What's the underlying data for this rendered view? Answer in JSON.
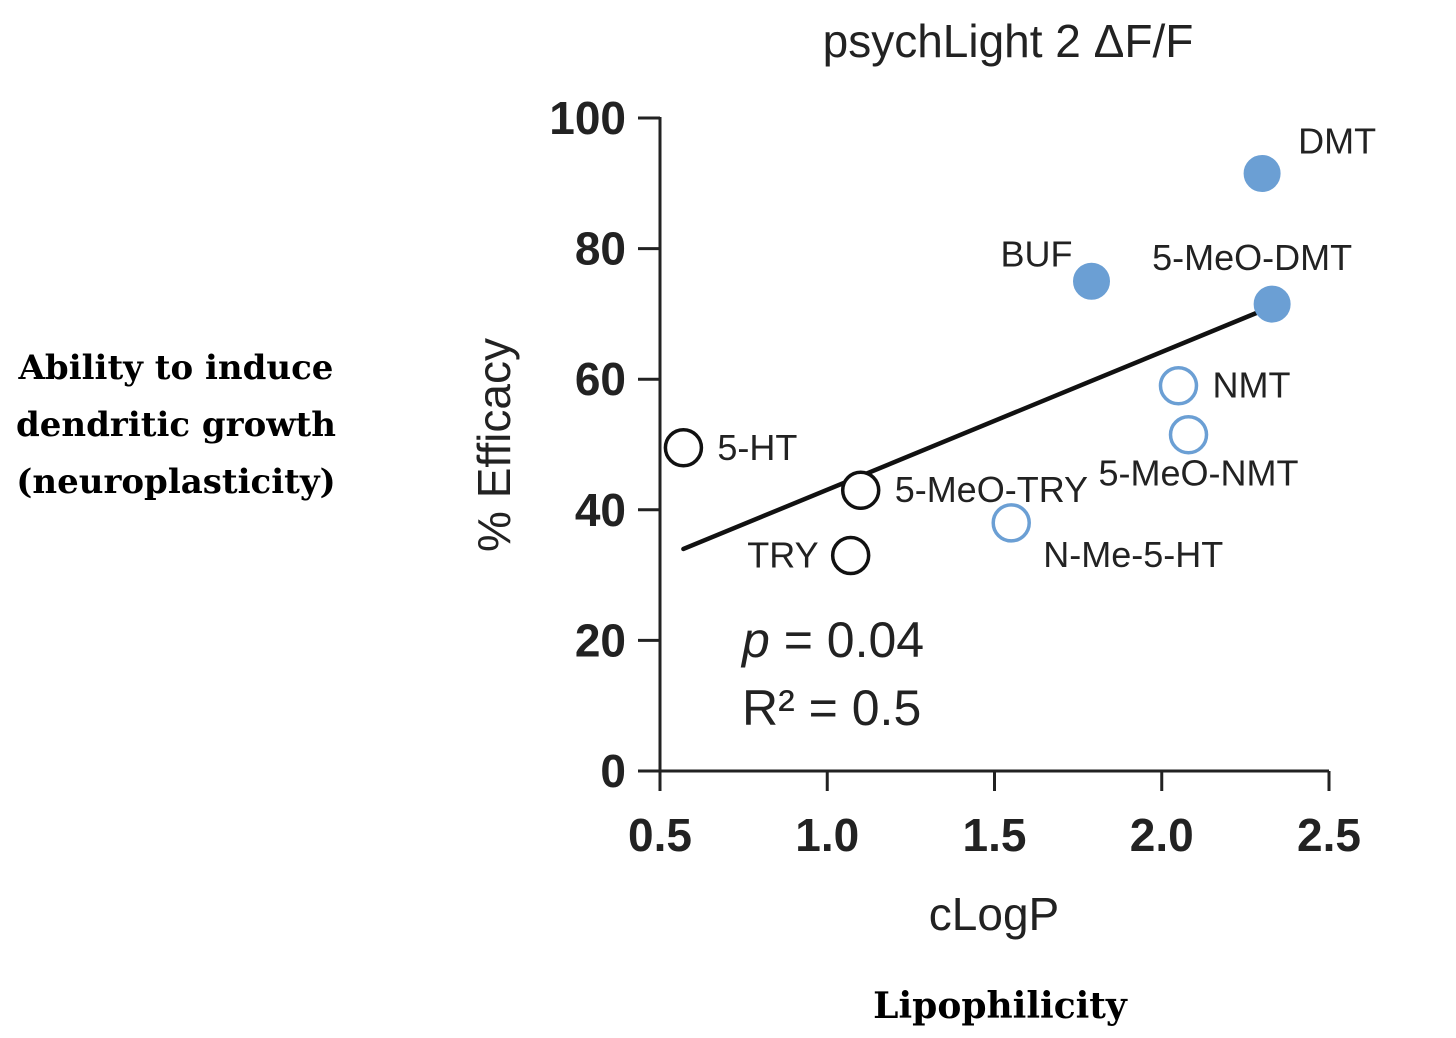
{
  "annotations": {
    "left_lines": [
      "Ability to induce",
      "dendritic growth",
      "(neuroplasticity)"
    ],
    "bottom": "Lipophilicity"
  },
  "chart_data": {
    "type": "scatter",
    "title": "psychLight 2 ΔF/F",
    "xlabel": "cLogP",
    "ylabel": "% Efficacy",
    "xlim": [
      0.5,
      2.5
    ],
    "ylim": [
      0,
      100
    ],
    "xticks": [
      0.5,
      1.0,
      1.5,
      2.0,
      2.5
    ],
    "xtick_labels": [
      "0.5",
      "1.0",
      "1.5",
      "2.0",
      "2.5"
    ],
    "yticks": [
      0,
      20,
      40,
      60,
      80,
      100
    ],
    "ytick_labels": [
      "0",
      "20",
      "40",
      "60",
      "80",
      "100"
    ],
    "grid": false,
    "colors": {
      "blue": "#6b9fd4",
      "black": "#111111"
    },
    "points": [
      {
        "label": "5-HT",
        "x": 0.57,
        "y": 49.5,
        "style": "open-black",
        "label_pos": "right"
      },
      {
        "label": "5-MeO-TRY",
        "x": 1.1,
        "y": 43,
        "style": "open-black",
        "label_pos": "right"
      },
      {
        "label": "TRY",
        "x": 1.07,
        "y": 33,
        "style": "open-black",
        "label_pos": "left"
      },
      {
        "label": "N-Me-5-HT",
        "x": 1.55,
        "y": 38,
        "style": "open-blue",
        "label_pos": "below-right"
      },
      {
        "label": "NMT",
        "x": 2.05,
        "y": 59,
        "style": "open-blue",
        "label_pos": "right"
      },
      {
        "label": "5-MeO-NMT",
        "x": 2.08,
        "y": 51.5,
        "style": "open-blue",
        "label_pos": "below"
      },
      {
        "label": "BUF",
        "x": 1.79,
        "y": 75,
        "style": "filled-blue",
        "label_pos": "above-left"
      },
      {
        "label": "DMT",
        "x": 2.3,
        "y": 91.5,
        "style": "filled-blue",
        "label_pos": "above-right"
      },
      {
        "label": "5-MeO-DMT",
        "x": 2.33,
        "y": 71.5,
        "style": "filled-blue",
        "label_pos": "above"
      }
    ],
    "fit_line": {
      "x": [
        0.57,
        2.3
      ],
      "y": [
        34,
        70.5
      ]
    },
    "stats": {
      "p_symbol": "p",
      "p_rest": " = 0.04",
      "r2": "R² = 0.5"
    }
  }
}
